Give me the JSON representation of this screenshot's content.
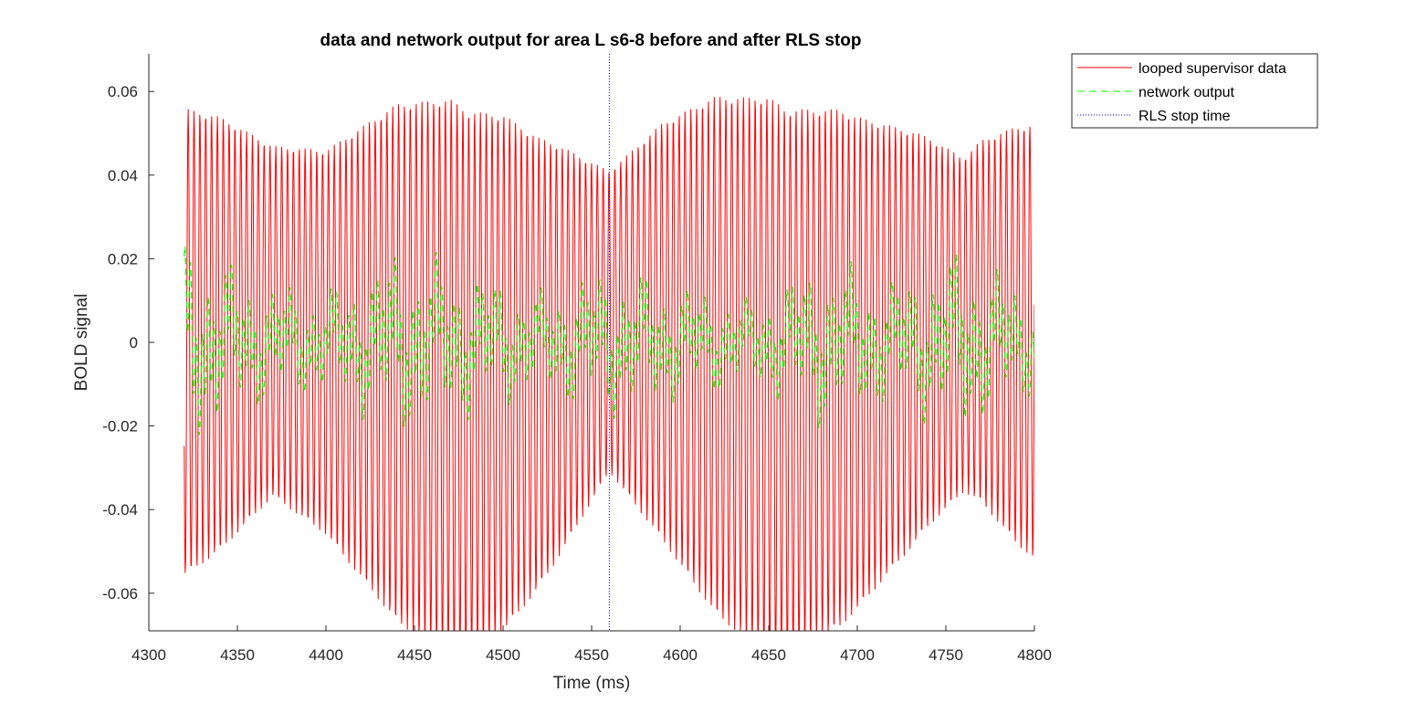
{
  "chart_data": {
    "type": "line",
    "title": "data and network output for area L s6-8 before and after RLS stop",
    "xlabel": "Time (ms)",
    "ylabel": "BOLD signal",
    "xlim": [
      4300,
      4800
    ],
    "ylim": [
      -0.069,
      0.069
    ],
    "xticks": [
      4300,
      4350,
      4400,
      4450,
      4500,
      4550,
      4600,
      4650,
      4700,
      4750,
      4800
    ],
    "yticks": [
      -0.06,
      -0.04,
      -0.02,
      0,
      0.02,
      0.04,
      0.06
    ],
    "ytick_labels": [
      "-0.06",
      "-0.04",
      "-0.02",
      "0",
      "0.02",
      "0.04",
      "0.06"
    ],
    "grid": false,
    "legend_position": "outside-top-right",
    "series": [
      {
        "name": "looped supervisor data",
        "style": "solid",
        "color": "#ff0000",
        "x_start": 4320,
        "x_end": 4800,
        "period_ms": 3.3,
        "amplitude_envelope": [
          [
            4320,
            0.056
          ],
          [
            4340,
            0.052
          ],
          [
            4370,
            0.042
          ],
          [
            4400,
            0.046
          ],
          [
            4440,
            0.062
          ],
          [
            4470,
            0.067
          ],
          [
            4500,
            0.062
          ],
          [
            4530,
            0.05
          ],
          [
            4560,
            0.036
          ],
          [
            4590,
            0.05
          ],
          [
            4620,
            0.062
          ],
          [
            4650,
            0.067
          ],
          [
            4690,
            0.062
          ],
          [
            4730,
            0.05
          ],
          [
            4760,
            0.04
          ],
          [
            4790,
            0.05
          ],
          [
            4800,
            0.052
          ]
        ],
        "offset_envelope": [
          [
            4320,
            0.0
          ],
          [
            4370,
            0.01
          ],
          [
            4400,
            0.0
          ],
          [
            4440,
            -0.01
          ],
          [
            4480,
            -0.02
          ],
          [
            4520,
            -0.01
          ],
          [
            4560,
            0.01
          ],
          [
            4590,
            0.005
          ],
          [
            4630,
            -0.01
          ],
          [
            4660,
            -0.02
          ],
          [
            4700,
            -0.01
          ],
          [
            4740,
            0.005
          ],
          [
            4770,
            0.01
          ],
          [
            4800,
            0.0
          ]
        ]
      },
      {
        "name": "network output",
        "style": "dashed",
        "color": "#00ff00",
        "x_start": 4320,
        "x_end": 4800,
        "amplitude_envelope": [
          [
            4320,
            0.025
          ],
          [
            4360,
            0.015
          ],
          [
            4400,
            0.012
          ],
          [
            4440,
            0.022
          ],
          [
            4480,
            0.018
          ],
          [
            4520,
            0.012
          ],
          [
            4560,
            0.018
          ],
          [
            4600,
            0.014
          ],
          [
            4640,
            0.01
          ],
          [
            4680,
            0.02
          ],
          [
            4720,
            0.015
          ],
          [
            4760,
            0.022
          ],
          [
            4800,
            0.012
          ]
        ]
      },
      {
        "name": "RLS stop time",
        "style": "dotted",
        "color": "#0000ff",
        "x": 4560
      }
    ]
  }
}
